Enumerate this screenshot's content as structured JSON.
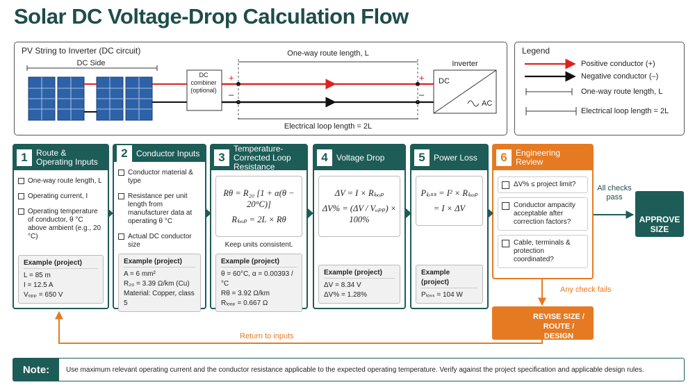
{
  "title": "Solar DC Voltage-Drop Calculation Flow",
  "circuit": {
    "title": "PV String to Inverter (DC circuit)",
    "dc_side": "DC Side",
    "combiner": "DC combiner (optional)",
    "plus": "+",
    "minus": "–",
    "route_length": "One-way route length, L",
    "loop_length": "Electrical loop length = 2L",
    "inverter": "Inverter",
    "dc": "DC",
    "ac": "AC"
  },
  "legend": {
    "title": "Legend",
    "items": [
      "Positive conductor (+)",
      "Negative conductor (–)",
      "One-way route length, L",
      "Electrical loop length = 2L"
    ]
  },
  "steps": [
    {
      "number": 1,
      "title": "Route & Operating Inputs",
      "items": [
        "One-way route length, L",
        "Operating current, I",
        "Operating temperature of conductor, θ °C above ambient (e.g., 20 °C)"
      ],
      "example_title": "Example (project)",
      "example": [
        "L = 85 m",
        "I = 12.5 A",
        "Vₒₚₚ = 650 V"
      ]
    },
    {
      "number": 2,
      "title": "Conductor Inputs",
      "items": [
        "Conductor material & type",
        "Resistance per unit length from manufacturer data at operating θ °C",
        "Actual DC conductor size"
      ],
      "example_title": "Example (project)",
      "example": [
        "A = 6 mm²",
        "R₂₀ = 3.39 Ω/km (Cu)",
        "Material: Copper, class 5"
      ]
    },
    {
      "number": 3,
      "title": "Temperature-Corrected Loop Resistance",
      "formulas": [
        "Rθ = R₂₀ [1 + α(θ − 20°C)]",
        "Rₗₒₒₚ = 2L × Rθ"
      ],
      "formula_note": "Keep units consistent.",
      "example_title": "Example (project)",
      "example": [
        "θ = 60°C,  α = 0.00393 /°C",
        "Rθ = 3.92 Ω/km",
        "Rₗₒₒₚ = 0.667 Ω"
      ]
    },
    {
      "number": 4,
      "title": "Voltage Drop",
      "formulas": [
        "ΔV = I × Rₗₒₒₚ",
        "ΔV% = (ΔV / Vₒₚₚ) × 100%"
      ],
      "example_title": "Example (project)",
      "example": [
        "ΔV = 8.34 V",
        "ΔV% = 1.28%"
      ]
    },
    {
      "number": 5,
      "title": "Power Loss",
      "formulas": [
        "Pₗₒₛₛ = I² × Rₗₒₒₚ",
        "= I × ΔV"
      ],
      "example_title": "Example (project)",
      "example": [
        "Pₗₒₛₛ = 104 W"
      ]
    },
    {
      "number": 6,
      "title": "Engineering Review",
      "checks": [
        "ΔV% ≤ project limit?",
        "Conductor ampacity acceptable after correction factors?",
        "Cable, terminals & protection coordinated?"
      ]
    }
  ],
  "pass_label": "All checks pass",
  "approve": "APPROVE SIZE",
  "fail_label": "Any check fails",
  "revise": "REVISE SIZE / ROUTE / DESIGN",
  "return_label": "Return to inputs",
  "note": {
    "label": "Note:",
    "text": "Use maximum relevant operating current and the conductor resistance applicable to the expected operating temperature. Verify against the project specification and applicable design rules."
  }
}
